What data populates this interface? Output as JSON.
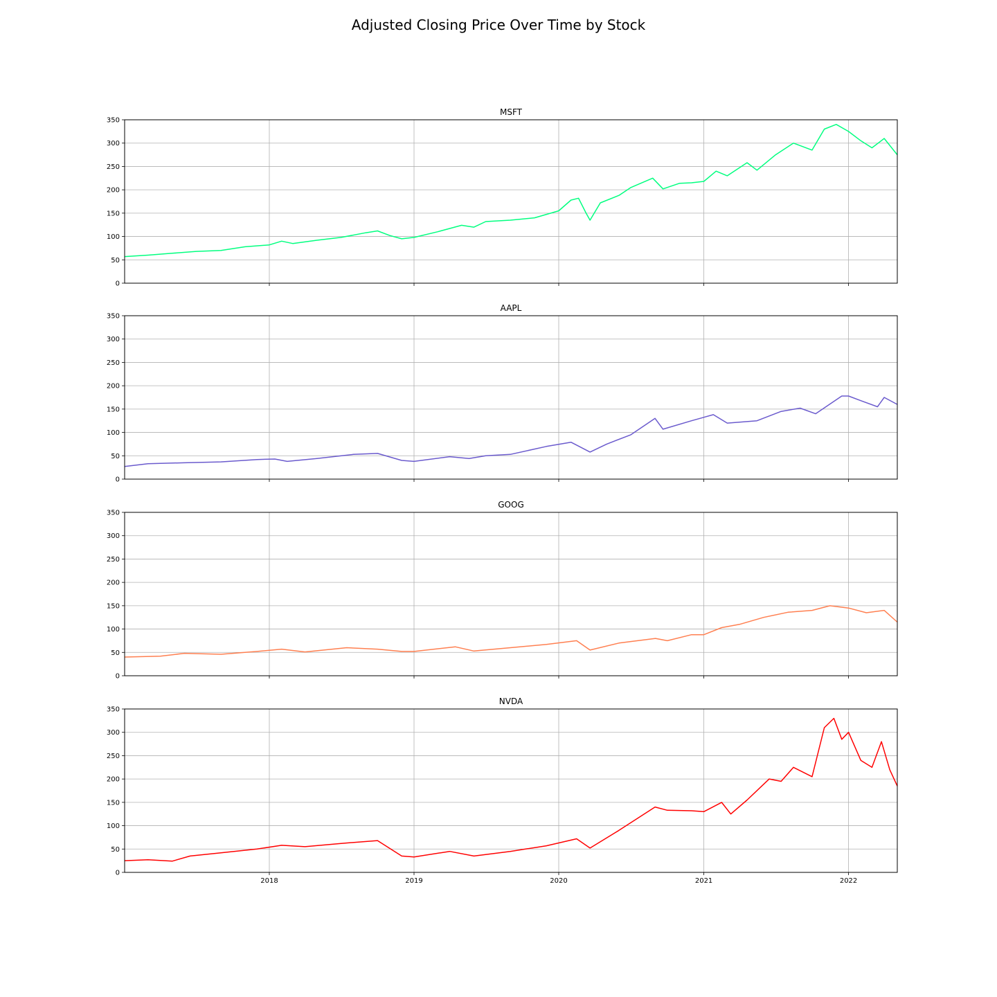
{
  "figure": {
    "title": "Adjusted Closing Price Over Time by Stock"
  },
  "chart_data": {
    "type": "line",
    "title": "Adjusted Closing Price Over Time by Stock",
    "xlabel": "",
    "ylabel": "",
    "x_axis": {
      "min": "2017-01-01",
      "max": "2022-05-04",
      "ticks": [
        "2018",
        "2019",
        "2020",
        "2021",
        "2022"
      ],
      "tick_dates": [
        "2018-01-01",
        "2019-01-01",
        "2020-01-01",
        "2021-01-01",
        "2022-01-01"
      ]
    },
    "y_axis": {
      "min": 0,
      "max": 350,
      "ticks": [
        "0",
        "50",
        "100",
        "150",
        "200",
        "250",
        "300",
        "350"
      ]
    },
    "grid": true,
    "series": [
      {
        "name": "MSFT",
        "color": "#00ff7f",
        "points": [
          [
            "2017-01-01",
            57
          ],
          [
            "2017-03-01",
            60
          ],
          [
            "2017-05-01",
            64
          ],
          [
            "2017-07-01",
            68
          ],
          [
            "2017-09-01",
            70
          ],
          [
            "2017-11-01",
            78
          ],
          [
            "2018-01-01",
            82
          ],
          [
            "2018-02-01",
            90
          ],
          [
            "2018-03-01",
            85
          ],
          [
            "2018-05-01",
            92
          ],
          [
            "2018-07-01",
            98
          ],
          [
            "2018-09-01",
            108
          ],
          [
            "2018-10-01",
            112
          ],
          [
            "2018-11-01",
            102
          ],
          [
            "2018-12-01",
            95
          ],
          [
            "2019-01-01",
            98
          ],
          [
            "2019-03-01",
            110
          ],
          [
            "2019-05-01",
            124
          ],
          [
            "2019-06-01",
            120
          ],
          [
            "2019-07-01",
            132
          ],
          [
            "2019-09-01",
            135
          ],
          [
            "2019-11-01",
            140
          ],
          [
            "2020-01-01",
            155
          ],
          [
            "2020-02-01",
            178
          ],
          [
            "2020-02-20",
            182
          ],
          [
            "2020-03-10",
            150
          ],
          [
            "2020-03-20",
            135
          ],
          [
            "2020-04-15",
            172
          ],
          [
            "2020-06-01",
            188
          ],
          [
            "2020-07-01",
            205
          ],
          [
            "2020-08-25",
            225
          ],
          [
            "2020-09-20",
            202
          ],
          [
            "2020-11-01",
            214
          ],
          [
            "2020-12-01",
            215
          ],
          [
            "2021-01-01",
            218
          ],
          [
            "2021-02-01",
            240
          ],
          [
            "2021-03-01",
            230
          ],
          [
            "2021-04-20",
            258
          ],
          [
            "2021-05-15",
            242
          ],
          [
            "2021-07-01",
            275
          ],
          [
            "2021-08-15",
            300
          ],
          [
            "2021-10-01",
            285
          ],
          [
            "2021-11-01",
            330
          ],
          [
            "2021-12-01",
            340
          ],
          [
            "2022-01-01",
            325
          ],
          [
            "2022-02-01",
            305
          ],
          [
            "2022-03-01",
            290
          ],
          [
            "2022-04-01",
            310
          ],
          [
            "2022-05-04",
            275
          ]
        ]
      },
      {
        "name": "AAPL",
        "color": "#6a5acd",
        "points": [
          [
            "2017-01-01",
            27
          ],
          [
            "2017-03-01",
            33
          ],
          [
            "2017-06-01",
            35
          ],
          [
            "2017-09-01",
            37
          ],
          [
            "2017-12-01",
            42
          ],
          [
            "2018-01-15",
            43
          ],
          [
            "2018-02-15",
            38
          ],
          [
            "2018-05-01",
            44
          ],
          [
            "2018-08-01",
            53
          ],
          [
            "2018-10-01",
            55
          ],
          [
            "2018-12-01",
            40
          ],
          [
            "2019-01-01",
            38
          ],
          [
            "2019-04-01",
            48
          ],
          [
            "2019-05-20",
            44
          ],
          [
            "2019-07-01",
            50
          ],
          [
            "2019-09-01",
            53
          ],
          [
            "2019-12-01",
            70
          ],
          [
            "2020-02-01",
            79
          ],
          [
            "2020-03-20",
            58
          ],
          [
            "2020-05-01",
            75
          ],
          [
            "2020-07-01",
            95
          ],
          [
            "2020-08-31",
            130
          ],
          [
            "2020-09-20",
            107
          ],
          [
            "2020-12-01",
            125
          ],
          [
            "2021-01-25",
            138
          ],
          [
            "2021-03-01",
            120
          ],
          [
            "2021-05-15",
            125
          ],
          [
            "2021-07-15",
            145
          ],
          [
            "2021-09-01",
            152
          ],
          [
            "2021-10-10",
            140
          ],
          [
            "2021-12-15",
            178
          ],
          [
            "2022-01-01",
            178
          ],
          [
            "2022-02-01",
            168
          ],
          [
            "2022-03-15",
            155
          ],
          [
            "2022-04-01",
            175
          ],
          [
            "2022-05-04",
            160
          ]
        ]
      },
      {
        "name": "GOOG",
        "color": "#ff7f50",
        "points": [
          [
            "2017-01-01",
            40
          ],
          [
            "2017-04-01",
            42
          ],
          [
            "2017-06-01",
            48
          ],
          [
            "2017-09-01",
            46
          ],
          [
            "2017-12-01",
            52
          ],
          [
            "2018-02-01",
            57
          ],
          [
            "2018-04-01",
            51
          ],
          [
            "2018-07-15",
            60
          ],
          [
            "2018-10-01",
            57
          ],
          [
            "2018-12-01",
            52
          ],
          [
            "2019-01-01",
            52
          ],
          [
            "2019-04-15",
            62
          ],
          [
            "2019-06-01",
            53
          ],
          [
            "2019-09-01",
            60
          ],
          [
            "2019-12-01",
            67
          ],
          [
            "2020-02-15",
            75
          ],
          [
            "2020-03-20",
            55
          ],
          [
            "2020-06-01",
            70
          ],
          [
            "2020-09-01",
            80
          ],
          [
            "2020-10-01",
            75
          ],
          [
            "2020-12-01",
            88
          ],
          [
            "2021-01-01",
            88
          ],
          [
            "2021-02-15",
            103
          ],
          [
            "2021-04-01",
            110
          ],
          [
            "2021-06-01",
            125
          ],
          [
            "2021-08-01",
            136
          ],
          [
            "2021-10-01",
            140
          ],
          [
            "2021-11-15",
            150
          ],
          [
            "2022-01-01",
            145
          ],
          [
            "2022-02-15",
            135
          ],
          [
            "2022-04-01",
            140
          ],
          [
            "2022-05-04",
            115
          ]
        ]
      },
      {
        "name": "NVDA",
        "color": "#ff0000",
        "points": [
          [
            "2017-01-01",
            25
          ],
          [
            "2017-03-01",
            27
          ],
          [
            "2017-05-01",
            24
          ],
          [
            "2017-06-15",
            35
          ],
          [
            "2017-09-01",
            42
          ],
          [
            "2017-12-01",
            50
          ],
          [
            "2018-02-01",
            58
          ],
          [
            "2018-04-01",
            55
          ],
          [
            "2018-07-01",
            62
          ],
          [
            "2018-10-01",
            68
          ],
          [
            "2018-12-01",
            35
          ],
          [
            "2019-01-01",
            33
          ],
          [
            "2019-04-01",
            45
          ],
          [
            "2019-06-01",
            35
          ],
          [
            "2019-09-01",
            45
          ],
          [
            "2019-12-01",
            57
          ],
          [
            "2020-02-15",
            72
          ],
          [
            "2020-03-20",
            52
          ],
          [
            "2020-06-01",
            90
          ],
          [
            "2020-08-31",
            140
          ],
          [
            "2020-10-01",
            133
          ],
          [
            "2020-12-01",
            132
          ],
          [
            "2021-01-01",
            130
          ],
          [
            "2021-02-15",
            150
          ],
          [
            "2021-03-10",
            125
          ],
          [
            "2021-04-20",
            155
          ],
          [
            "2021-06-15",
            200
          ],
          [
            "2021-07-15",
            195
          ],
          [
            "2021-08-15",
            225
          ],
          [
            "2021-10-01",
            205
          ],
          [
            "2021-11-01",
            310
          ],
          [
            "2021-11-25",
            330
          ],
          [
            "2021-12-15",
            285
          ],
          [
            "2022-01-01",
            300
          ],
          [
            "2022-02-01",
            240
          ],
          [
            "2022-03-01",
            225
          ],
          [
            "2022-03-25",
            280
          ],
          [
            "2022-04-15",
            220
          ],
          [
            "2022-05-04",
            185
          ]
        ]
      }
    ]
  }
}
